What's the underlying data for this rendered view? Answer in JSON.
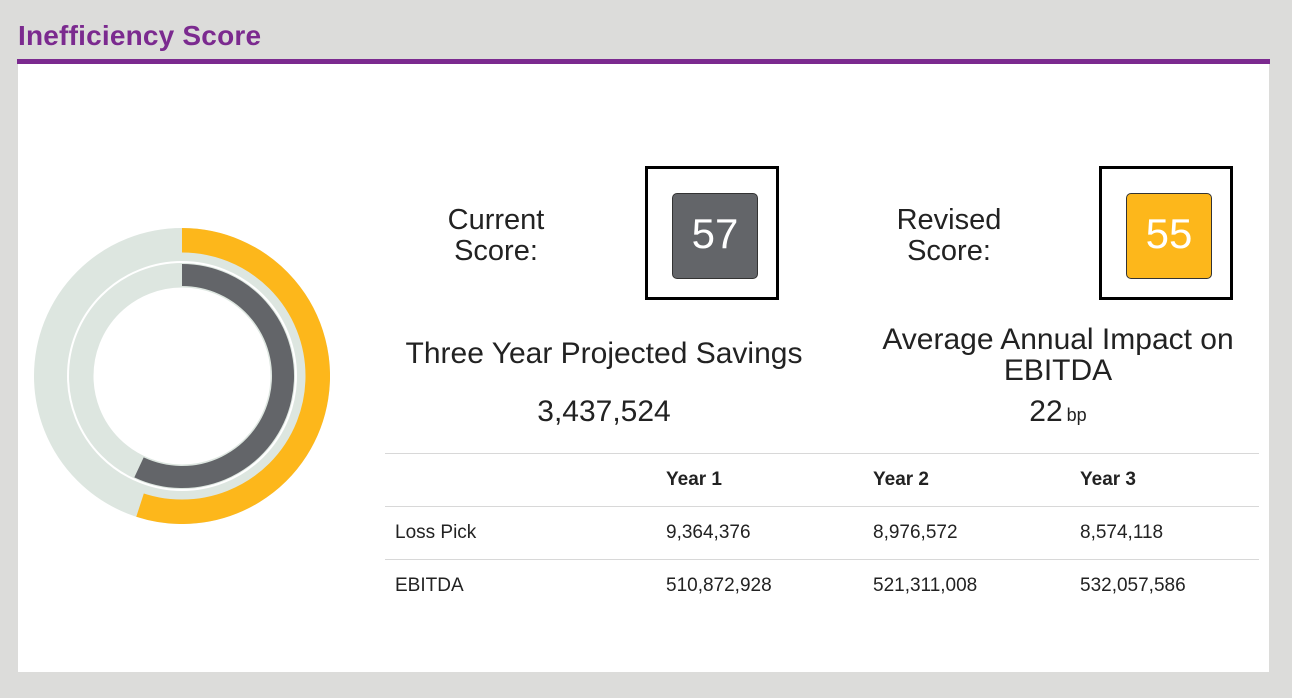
{
  "header": {
    "title": "Inefficiency Score"
  },
  "colors": {
    "accent": "#7b2a8f",
    "current": "#636569",
    "revised": "#fdb71b",
    "track": "#dde6e0"
  },
  "gauge": {
    "max": 100,
    "current_value": 57,
    "revised_value": 55
  },
  "current": {
    "label_line1": "Current",
    "label_line2": "Score:",
    "value": "57"
  },
  "revised": {
    "label_line1": "Revised",
    "label_line2": "Score:",
    "value": "55"
  },
  "savings": {
    "title": "Three Year Projected Savings",
    "value": "3,437,524"
  },
  "impact": {
    "title_line1": "Average Annual Impact on",
    "title_line2": "EBITDA",
    "value": "22",
    "unit": "bp"
  },
  "table": {
    "headers": [
      "",
      "Year 1",
      "Year 2",
      "Year 3"
    ],
    "rows": [
      {
        "label": "Loss Pick",
        "y1": "9,364,376",
        "y2": "8,976,572",
        "y3": "8,574,118"
      },
      {
        "label": "EBITDA",
        "y1": "510,872,928",
        "y2": "521,311,008",
        "y3": "532,057,586"
      }
    ]
  }
}
